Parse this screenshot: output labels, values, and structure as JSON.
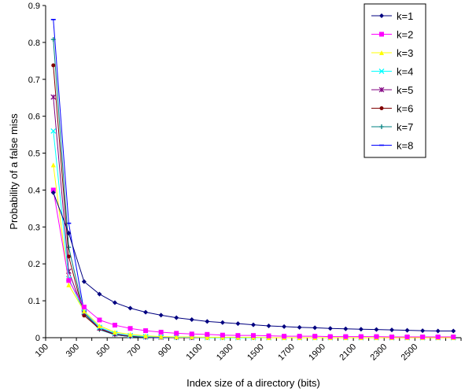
{
  "chart_data": {
    "type": "line",
    "title": "",
    "xlabel": "Index size of a directory (bits)",
    "ylabel": "Probability of a false miss",
    "x_tick_labels": [
      "100",
      "300",
      "500",
      "700",
      "900",
      "1100",
      "1300",
      "1500",
      "1700",
      "1900",
      "2100",
      "2300",
      "2500"
    ],
    "y_tick_labels": [
      "0",
      "0.1",
      "0.2",
      "0.3",
      "0.4",
      "0.5",
      "0.6",
      "0.7",
      "0.8",
      "0.9"
    ],
    "xlim": [
      100,
      2800
    ],
    "ylim": [
      0,
      0.9
    ],
    "legend_position": "top-right",
    "x": [
      150,
      250,
      350,
      450,
      550,
      650,
      750,
      850,
      950,
      1050,
      1150,
      1250,
      1350,
      1450,
      1550,
      1650,
      1750,
      1850,
      1950,
      2050,
      2150,
      2250,
      2350,
      2450,
      2550,
      2650,
      2750
    ],
    "series": [
      {
        "name": "k=1",
        "color": "#000080",
        "marker": "diamond",
        "values": [
          0.393,
          0.283,
          0.152,
          0.118,
          0.095,
          0.08,
          0.069,
          0.061,
          0.054,
          0.049,
          0.044,
          0.041,
          0.038,
          0.035,
          0.032,
          0.03,
          0.028,
          0.027,
          0.025,
          0.024,
          0.023,
          0.022,
          0.021,
          0.02,
          0.019,
          0.018,
          0.018
        ]
      },
      {
        "name": "k=2",
        "color": "#ff00ff",
        "marker": "square",
        "values": [
          0.4,
          0.155,
          0.083,
          0.048,
          0.034,
          0.025,
          0.019,
          0.015,
          0.012,
          0.01,
          0.009,
          0.007,
          0.006,
          0.006,
          0.005,
          0.004,
          0.004,
          0.004,
          0.003,
          0.003,
          0.003,
          0.003,
          0.002,
          0.002,
          0.002,
          0.002,
          0.002
        ]
      },
      {
        "name": "k=3",
        "color": "#ffff00",
        "marker": "triangle",
        "values": [
          0.468,
          0.143,
          0.072,
          0.032,
          0.015,
          0.009,
          0.005,
          0.003,
          0.002,
          0.002,
          0.001,
          0.001,
          0.001,
          0.001,
          0.0,
          0.0,
          0.0,
          0.0,
          0.0,
          0.0,
          0.0,
          0.0,
          0.0,
          0.0,
          0.0,
          0.0,
          0.0
        ]
      },
      {
        "name": "k=4",
        "color": "#00ffff",
        "marker": "x",
        "values": [
          0.56,
          0.16,
          0.07,
          0.028,
          0.012,
          0.006,
          0.003,
          0.002,
          0.001,
          0.001,
          0.0,
          0.0,
          0.0,
          0.0,
          0.0,
          0.0,
          0.0,
          0.0,
          0.0,
          0.0,
          0.0,
          0.0,
          0.0,
          0.0,
          0.0,
          0.0,
          0.0
        ]
      },
      {
        "name": "k=5",
        "color": "#800080",
        "marker": "star",
        "values": [
          0.652,
          0.18,
          0.068,
          0.026,
          0.01,
          0.005,
          0.002,
          0.001,
          0.001,
          0.0,
          0.0,
          0.0,
          0.0,
          0.0,
          0.0,
          0.0,
          0.0,
          0.0,
          0.0,
          0.0,
          0.0,
          0.0,
          0.0,
          0.0,
          0.0,
          0.0,
          0.0
        ]
      },
      {
        "name": "k=6",
        "color": "#800000",
        "marker": "circle",
        "values": [
          0.738,
          0.22,
          0.06,
          0.024,
          0.009,
          0.004,
          0.002,
          0.001,
          0.0,
          0.0,
          0.0,
          0.0,
          0.0,
          0.0,
          0.0,
          0.0,
          0.0,
          0.0,
          0.0,
          0.0,
          0.0,
          0.0,
          0.0,
          0.0,
          0.0,
          0.0,
          0.0
        ]
      },
      {
        "name": "k=7",
        "color": "#008080",
        "marker": "plus",
        "values": [
          0.808,
          0.245,
          0.065,
          0.022,
          0.008,
          0.003,
          0.001,
          0.001,
          0.0,
          0.0,
          0.0,
          0.0,
          0.0,
          0.0,
          0.0,
          0.0,
          0.0,
          0.0,
          0.0,
          0.0,
          0.0,
          0.0,
          0.0,
          0.0,
          0.0,
          0.0,
          0.0
        ]
      },
      {
        "name": "k=8",
        "color": "#0000ff",
        "marker": "dash",
        "values": [
          0.862,
          0.31,
          0.07,
          0.022,
          0.008,
          0.003,
          0.001,
          0.0,
          0.0,
          0.0,
          0.0,
          0.0,
          0.0,
          0.0,
          0.0,
          0.0,
          0.0,
          0.0,
          0.0,
          0.0,
          0.0,
          0.0,
          0.0,
          0.0,
          0.0,
          0.0,
          0.0
        ]
      }
    ]
  }
}
